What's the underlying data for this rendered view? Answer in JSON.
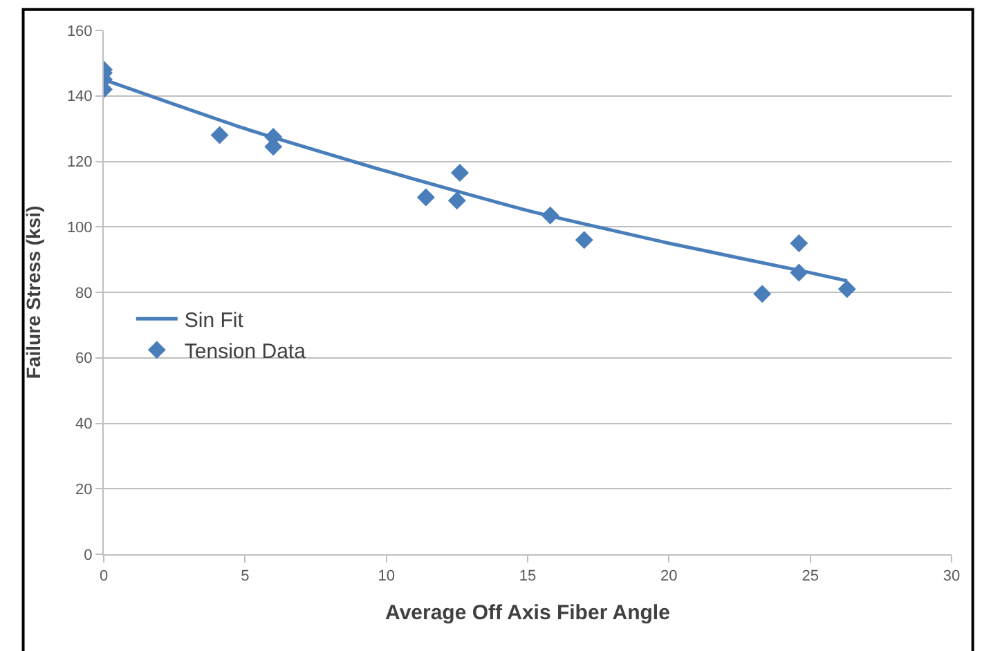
{
  "chart_data": {
    "type": "scatter",
    "xlabel": "Average Off Axis Fiber Angle",
    "ylabel": "Failure Stress (ksi)",
    "xlim": [
      0,
      30
    ],
    "xticks": [
      0,
      5,
      10,
      15,
      20,
      25,
      30
    ],
    "ylim": [
      0,
      160
    ],
    "yticks": [
      0,
      20,
      40,
      60,
      80,
      100,
      120,
      140,
      160
    ],
    "grid": "y",
    "legend": "left",
    "marker": "diamond",
    "series": [
      {
        "name": "Tension Data",
        "color": "#4a7ebb",
        "x": [
          0,
          0,
          0,
          0,
          4.1,
          6,
          6,
          11.4,
          12.6,
          12.5,
          15.8,
          17,
          23.3,
          24.6,
          24.6,
          26.3
        ],
        "values": [
          148,
          147,
          145,
          142,
          128,
          127.5,
          124.5,
          109,
          116.5,
          108,
          103.5,
          96,
          79.5,
          95,
          86,
          81
        ]
      },
      {
        "name": "Sin Fit",
        "color": "#4a7ebb",
        "type": "line",
        "marker": "none",
        "line_style": "solid",
        "x": [
          0,
          5,
          10,
          15,
          20,
          25,
          26.3
        ],
        "values": [
          145,
          130,
          117,
          105,
          95,
          86,
          83.5
        ]
      }
    ]
  }
}
